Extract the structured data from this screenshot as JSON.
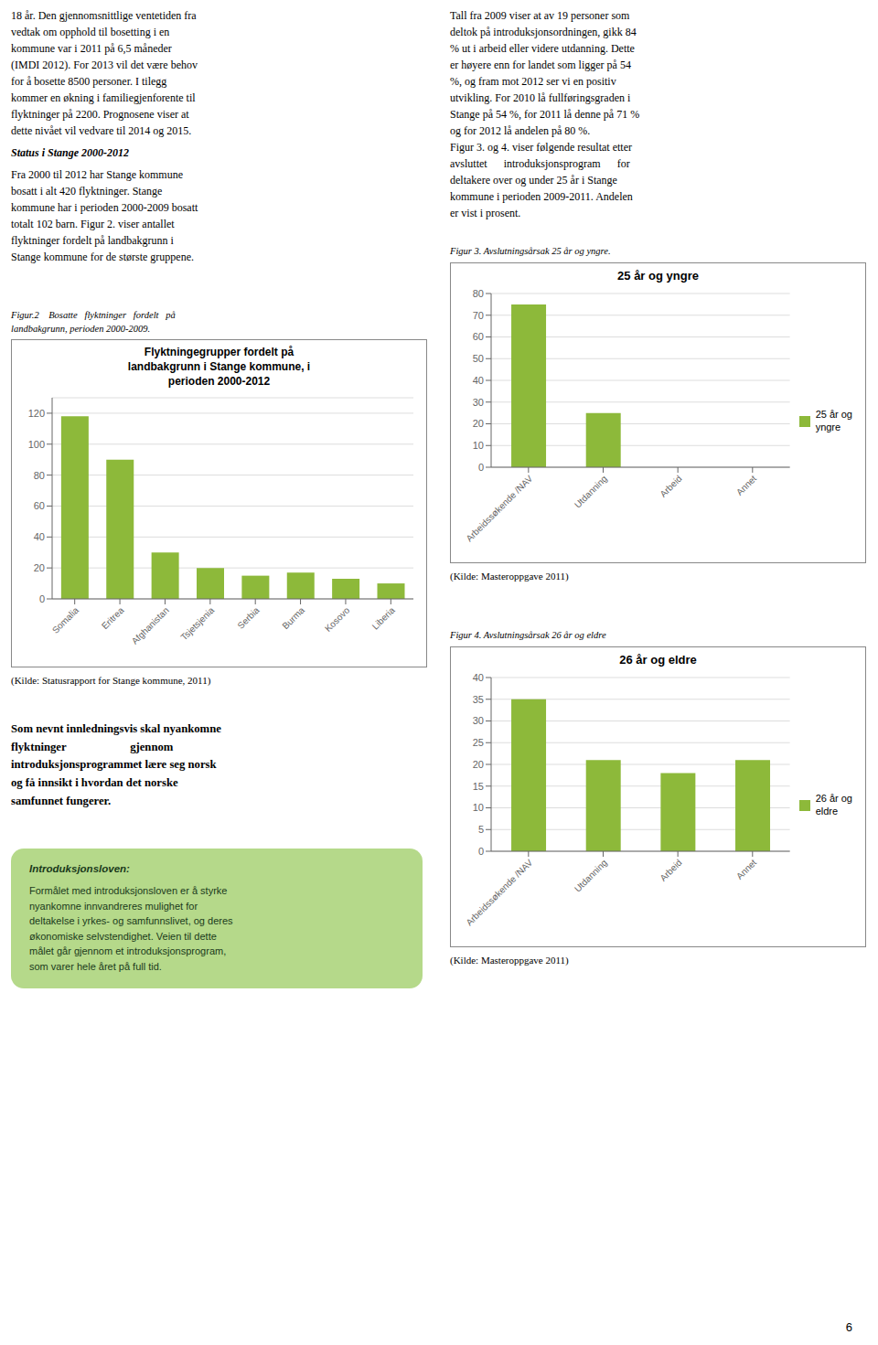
{
  "chart_data": [
    {
      "type": "bar",
      "title": "Flyktningegrupper fordelt på\nlandbakgrunn i Stange kommune, i\nperioden 2000-2012",
      "categories": [
        "Somalia",
        "Eritrea",
        "Afghanistan",
        "Tsjetsjenia",
        "Serbia",
        "Burma",
        "Kosovo",
        "Liberia"
      ],
      "values": [
        118,
        90,
        30,
        20,
        15,
        17,
        13,
        10
      ],
      "color": "#8db93a",
      "ylim": [
        0,
        130
      ],
      "yticks": [
        0,
        20,
        40,
        60,
        80,
        100,
        120
      ],
      "grid": true,
      "annotations": [
        "Figur.2    Bosatte   flyktninger   fordelt   på\nlandbakgrunn, perioden 2000-2009.",
        "(Kilde: Statusrapport for Stange kommune, 2011)"
      ]
    },
    {
      "type": "bar",
      "title": "25 år og yngre",
      "categories": [
        "Arbeidssøkende /NAV",
        "Utdanning",
        "Arbeid",
        "Annet"
      ],
      "series": [
        {
          "name": "25 år og\nyngre",
          "color": "#8db93a",
          "values": [
            75,
            25,
            0,
            0
          ]
        }
      ],
      "ylim": [
        0,
        80
      ],
      "yticks": [
        0,
        10,
        20,
        30,
        40,
        50,
        60,
        70,
        80
      ],
      "grid": true,
      "legend": "right",
      "annotations": [
        "Figur 3. Avslutningsårsak 25 år og yngre.",
        "(Kilde: Masteroppgave 2011)"
      ]
    },
    {
      "type": "bar",
      "title": "26 år og eldre",
      "categories": [
        "Arbeidssøkende /NAV",
        "Utdanning",
        "Arbeid",
        "Annet"
      ],
      "series": [
        {
          "name": "26 år og\neldre",
          "color": "#8db93a",
          "values": [
            35,
            21,
            18,
            21
          ]
        }
      ],
      "ylim": [
        0,
        40
      ],
      "yticks": [
        0,
        5,
        10,
        15,
        20,
        25,
        30,
        35,
        40
      ],
      "grid": true,
      "legend": "right",
      "annotations": [
        "Figur 4. Avslutningsårsak 26 år og eldre",
        "(Kilde: Masteroppgave 2011)"
      ]
    }
  ],
  "annotations": [
    "18 år. Den gjennomsnittlige ventetiden fra\nvedtak om opphold til bosetting i en\nkommune var i 2011 på 6,5 måneder\n(IMDI 2012). For 2013 vil det være behov\nfor å bosette 8500 personer. I tilegg\nkommer en økning i familiegjenforente til\nflyktninger på 2200. Prognosene viser at\ndette nivået vil vedvare til 2014 og 2015.",
    "Status i Stange 2000-2012",
    "Fra 2000 til 2012 har Stange kommune\nbosatt i alt 420 flyktninger. Stange\nkommune har i perioden 2000-2009 bosatt\ntotalt 102 barn. Figur 2. viser antallet\nflyktninger fordelt på landbakgrunn i\nStange kommune for de største gruppene.",
    "Tall fra 2009 viser at av 19 personer som\ndeltok på introduksjonsordningen, gikk 84\n% ut i arbeid eller videre utdanning. Dette\ner høyere enn for landet som ligger på 54\n%, og fram mot 2012 ser vi en positiv\nutvikling. For 2010 lå fullføringsgraden i\nStange på 54 %, for 2011 lå denne på 71 %\nog for 2012 lå andelen på 80 %.\nFigur 3. og 4. viser følgende resultat etter\navsluttet      introduksjonsprogram      for\ndeltakere over og under 25 år i Stange\nkommune i perioden 2009-2011. Andelen\ner vist i prosent.",
    "Som nevnt innledningsvis skal nyankomne\nflyktninger                      gjennom\nintroduksjonsprogrammet lære seg norsk\nog få innsikt i hvordan det norske\nsamfunnet fungerer.",
    "Introduksjonsloven:",
    "Formålet med introduksjonsloven er å styrke\nnyankomne innvandreres mulighet for\ndeltakelse i yrkes- og samfunnslivet, og deres\nøkonomiske selvstendighet. Veien til dette\nmålet går gjennom et introduksjonsprogram,\nsom varer hele året på full tid.",
    "6"
  ]
}
